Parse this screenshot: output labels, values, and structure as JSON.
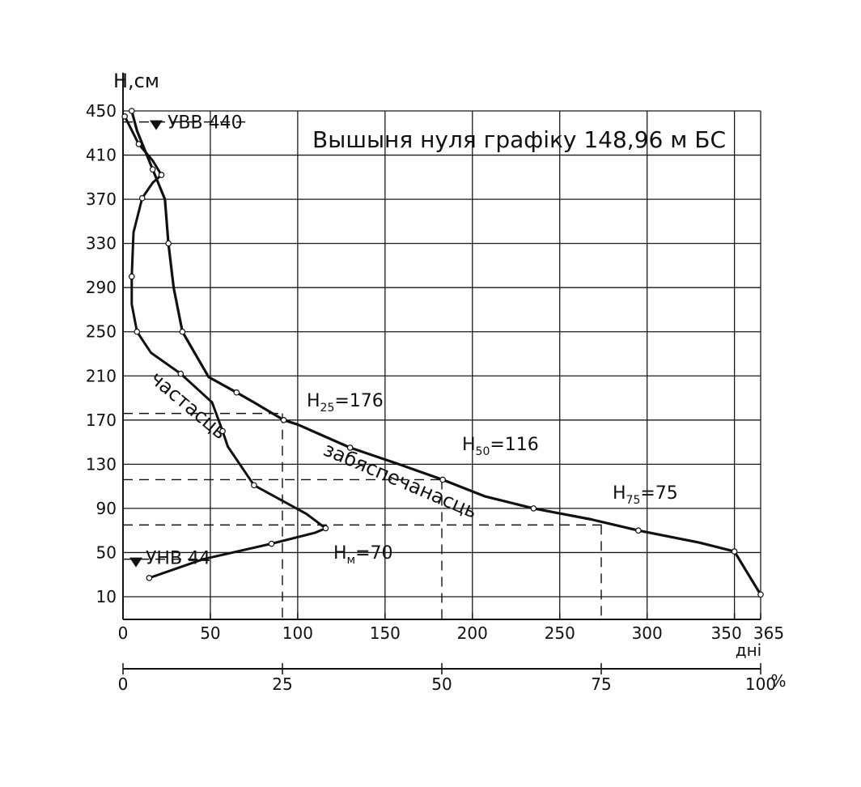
{
  "chart_data": {
    "type": "line",
    "title": "Вышыня нуля графіку 148,96 м БС",
    "ylabel": "H,см",
    "xlabel": "дні",
    "x2label": "%",
    "ylim": [
      -20,
      470
    ],
    "xlim": [
      0,
      365
    ],
    "grid": true,
    "y_ticks": [
      10,
      50,
      90,
      130,
      170,
      210,
      250,
      290,
      330,
      370,
      410,
      450
    ],
    "x_ticks": [
      {
        "value": 0,
        "label": "0"
      },
      {
        "value": 50,
        "label": "50"
      },
      {
        "value": 100,
        "label": "100"
      },
      {
        "value": 150,
        "label": "150"
      },
      {
        "value": 200,
        "label": "200"
      },
      {
        "value": 250,
        "label": "250"
      },
      {
        "value": 300,
        "label": "300"
      },
      {
        "value": 350,
        "label": "350"
      },
      {
        "value": 365,
        "label": "365"
      }
    ],
    "x2_ticks": [
      {
        "value": 0,
        "label": "0"
      },
      {
        "value": 25,
        "label": "25"
      },
      {
        "value": 50,
        "label": "50"
      },
      {
        "value": 75,
        "label": "75"
      },
      {
        "value": 100,
        "label": "100"
      }
    ],
    "series": [
      {
        "name": "частасць",
        "points": [
          [
            15,
            27
          ],
          [
            46,
            44
          ],
          [
            85,
            58
          ],
          [
            110,
            68
          ],
          [
            116,
            72
          ],
          [
            105,
            85
          ],
          [
            75,
            111
          ],
          [
            60,
            146
          ],
          [
            57,
            160
          ],
          [
            51,
            186
          ],
          [
            33,
            212
          ],
          [
            16,
            231
          ],
          [
            8,
            250
          ],
          [
            5,
            275
          ],
          [
            5,
            300
          ],
          [
            6,
            340
          ],
          [
            11,
            371
          ],
          [
            17,
            385
          ],
          [
            22,
            392
          ],
          [
            17,
            405
          ],
          [
            9,
            420
          ],
          [
            1,
            445
          ]
        ]
      },
      {
        "name": "забяспечанасць",
        "points": [
          [
            5,
            450
          ],
          [
            8,
            432
          ],
          [
            17,
            397
          ],
          [
            24,
            370
          ],
          [
            26,
            330
          ],
          [
            29,
            290
          ],
          [
            34,
            250
          ],
          [
            49,
            209
          ],
          [
            65,
            195
          ],
          [
            75,
            186
          ],
          [
            92,
            170
          ],
          [
            100,
            166
          ],
          [
            130,
            145
          ],
          [
            158,
            130
          ],
          [
            183,
            116
          ],
          [
            207,
            101
          ],
          [
            235,
            90
          ],
          [
            268,
            80
          ],
          [
            295,
            70
          ],
          [
            330,
            59
          ],
          [
            350,
            51
          ],
          [
            358,
            30
          ],
          [
            365,
            12
          ]
        ]
      }
    ],
    "annotations": [
      {
        "text": "УВВ 440",
        "level": 440
      },
      {
        "text": "УНВ 44",
        "level": 44
      },
      {
        "text": "H25=176",
        "sub": "25",
        "prefix": "H",
        "value": "=176",
        "level": 176,
        "percent": 25
      },
      {
        "text": "H50=116",
        "sub": "50",
        "prefix": "H",
        "value": "=116",
        "level": 116,
        "percent": 50
      },
      {
        "text": "H75=75",
        "sub": "75",
        "prefix": "H",
        "value": "=75",
        "level": 75,
        "percent": 75
      },
      {
        "text": "Hм=70",
        "sub": "м",
        "prefix": "H",
        "value": "=70",
        "level": 70
      }
    ]
  }
}
